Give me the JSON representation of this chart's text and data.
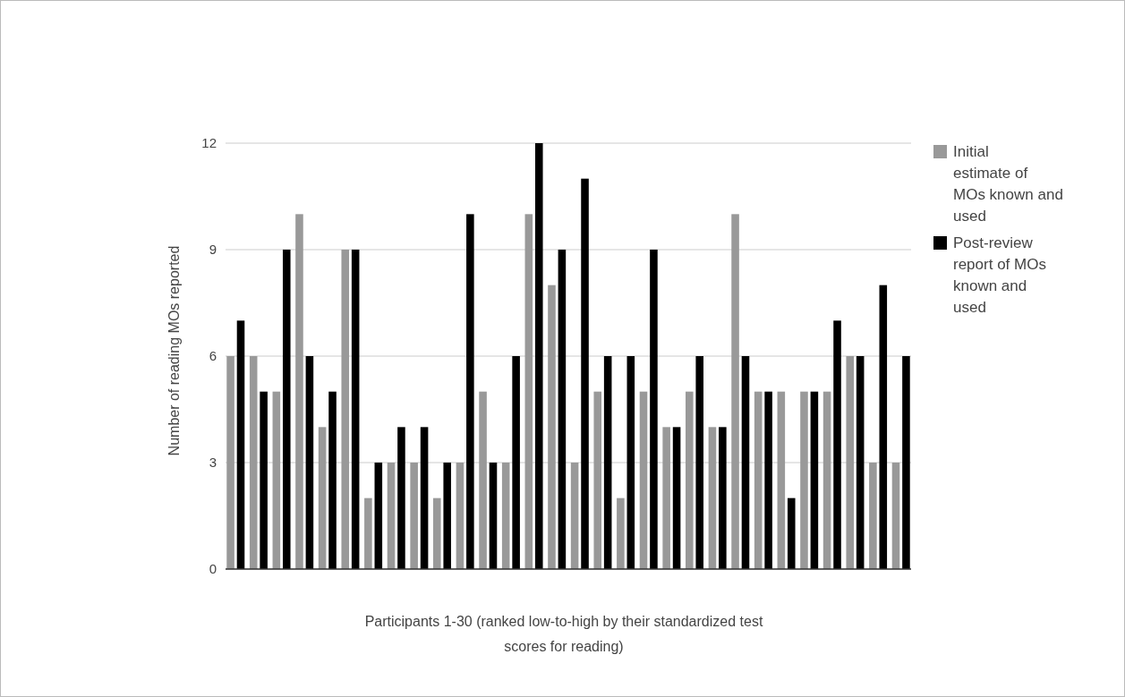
{
  "chart_data": {
    "type": "bar",
    "xlabel": "Participants 1-30 (ranked low-to-high by their standardized test scores for reading)",
    "ylabel": "Number of reading MOs reported",
    "categories": [
      null,
      null,
      null,
      null,
      null,
      null,
      null,
      null,
      null,
      null,
      null,
      null,
      null,
      null,
      null,
      null,
      null,
      null,
      null,
      null,
      null,
      null,
      null,
      null,
      null,
      null,
      null,
      null,
      null,
      null
    ],
    "series": [
      {
        "name": "Initial estimate of MOs known and used",
        "color": "#999999",
        "values": [
          6,
          6,
          5,
          10,
          4,
          9,
          2,
          3,
          3,
          2,
          3,
          5,
          3,
          10,
          8,
          3,
          5,
          2,
          5,
          4,
          5,
          4,
          10,
          5,
          5,
          5,
          5,
          6,
          3,
          3
        ]
      },
      {
        "name": "Post-review report of MOs known and used",
        "color": "#000000",
        "values": [
          7,
          5,
          9,
          6,
          5,
          9,
          3,
          4,
          4,
          3,
          10,
          3,
          6,
          12,
          9,
          11,
          6,
          6,
          9,
          4,
          6,
          4,
          6,
          5,
          2,
          5,
          7,
          6,
          8,
          6
        ]
      }
    ],
    "ylim": [
      0,
      12
    ],
    "yticks": [
      0,
      3,
      6,
      9,
      12
    ],
    "grid": "y",
    "legend": "right"
  }
}
